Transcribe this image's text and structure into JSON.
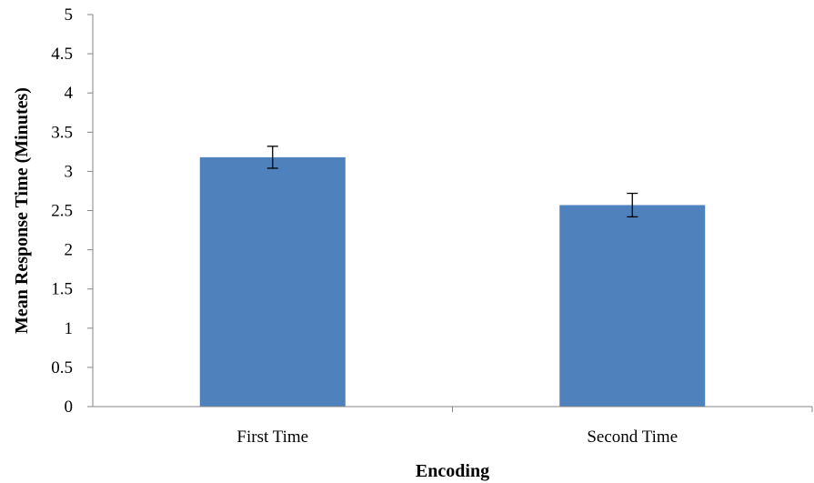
{
  "chart_data": {
    "type": "bar",
    "title": "",
    "xlabel": "Encoding",
    "ylabel": "Mean Response Time (Minutes)",
    "categories": [
      "First Time",
      "Second Time"
    ],
    "series": [
      {
        "values": [
          3.18,
          2.57
        ],
        "error": [
          0.14,
          0.15
        ]
      }
    ],
    "ylim": [
      0,
      5
    ],
    "yticks": [
      "0",
      "0.5",
      "1",
      "1.5",
      "2",
      "2.5",
      "3",
      "3.5",
      "4",
      "4.5",
      "5"
    ],
    "grid": false,
    "legend": "none",
    "bar_color": "#4f81bd",
    "axis_color": "#868686"
  }
}
